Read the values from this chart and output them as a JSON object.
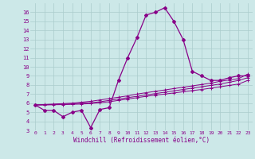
{
  "xlabel": "Windchill (Refroidissement éolien,°C)",
  "bg_color": "#cce8e8",
  "line_color": "#880088",
  "grid_color": "#aacccc",
  "xlim": [
    -0.5,
    23.5
  ],
  "ylim": [
    3,
    17
  ],
  "yticks": [
    3,
    4,
    5,
    6,
    7,
    8,
    9,
    10,
    11,
    12,
    13,
    14,
    15,
    16
  ],
  "xticks": [
    0,
    1,
    2,
    3,
    4,
    5,
    6,
    7,
    8,
    9,
    10,
    11,
    12,
    13,
    14,
    15,
    16,
    17,
    18,
    19,
    20,
    21,
    22,
    23
  ],
  "main_x": [
    0,
    1,
    2,
    3,
    4,
    5,
    6,
    7,
    8,
    9,
    10,
    11,
    12,
    13,
    14,
    15,
    16,
    17,
    18,
    19,
    20,
    21,
    22,
    23
  ],
  "main_y": [
    5.8,
    5.2,
    5.2,
    4.5,
    5.0,
    5.2,
    3.3,
    5.3,
    5.5,
    8.5,
    11.0,
    13.2,
    15.7,
    16.0,
    16.5,
    15.0,
    13.0,
    9.5,
    9.0,
    8.5,
    8.5,
    8.8,
    9.0,
    9.0
  ],
  "line1_x": [
    0,
    1,
    2,
    3,
    4,
    5,
    6,
    7,
    8,
    9,
    10,
    11,
    12,
    13,
    14,
    15,
    16,
    17,
    18,
    19,
    20,
    21,
    22,
    23
  ],
  "line1_y": [
    5.8,
    5.85,
    5.9,
    5.95,
    6.0,
    6.1,
    6.2,
    6.35,
    6.5,
    6.65,
    6.8,
    7.0,
    7.15,
    7.3,
    7.45,
    7.6,
    7.75,
    7.9,
    8.05,
    8.2,
    8.4,
    8.55,
    8.7,
    9.2
  ],
  "line2_x": [
    0,
    1,
    2,
    3,
    4,
    5,
    6,
    7,
    8,
    9,
    10,
    11,
    12,
    13,
    14,
    15,
    16,
    17,
    18,
    19,
    20,
    21,
    22,
    23
  ],
  "line2_y": [
    5.8,
    5.82,
    5.85,
    5.88,
    5.92,
    6.0,
    6.05,
    6.15,
    6.3,
    6.45,
    6.6,
    6.75,
    6.9,
    7.05,
    7.2,
    7.35,
    7.5,
    7.65,
    7.8,
    7.95,
    8.1,
    8.3,
    8.5,
    8.8
  ],
  "line3_x": [
    0,
    1,
    2,
    3,
    4,
    5,
    6,
    7,
    8,
    9,
    10,
    11,
    12,
    13,
    14,
    15,
    16,
    17,
    18,
    19,
    20,
    21,
    22,
    23
  ],
  "line3_y": [
    5.8,
    5.8,
    5.82,
    5.84,
    5.87,
    5.9,
    5.95,
    6.05,
    6.15,
    6.3,
    6.45,
    6.6,
    6.75,
    6.88,
    7.0,
    7.12,
    7.25,
    7.38,
    7.5,
    7.65,
    7.8,
    7.95,
    8.1,
    8.5
  ]
}
